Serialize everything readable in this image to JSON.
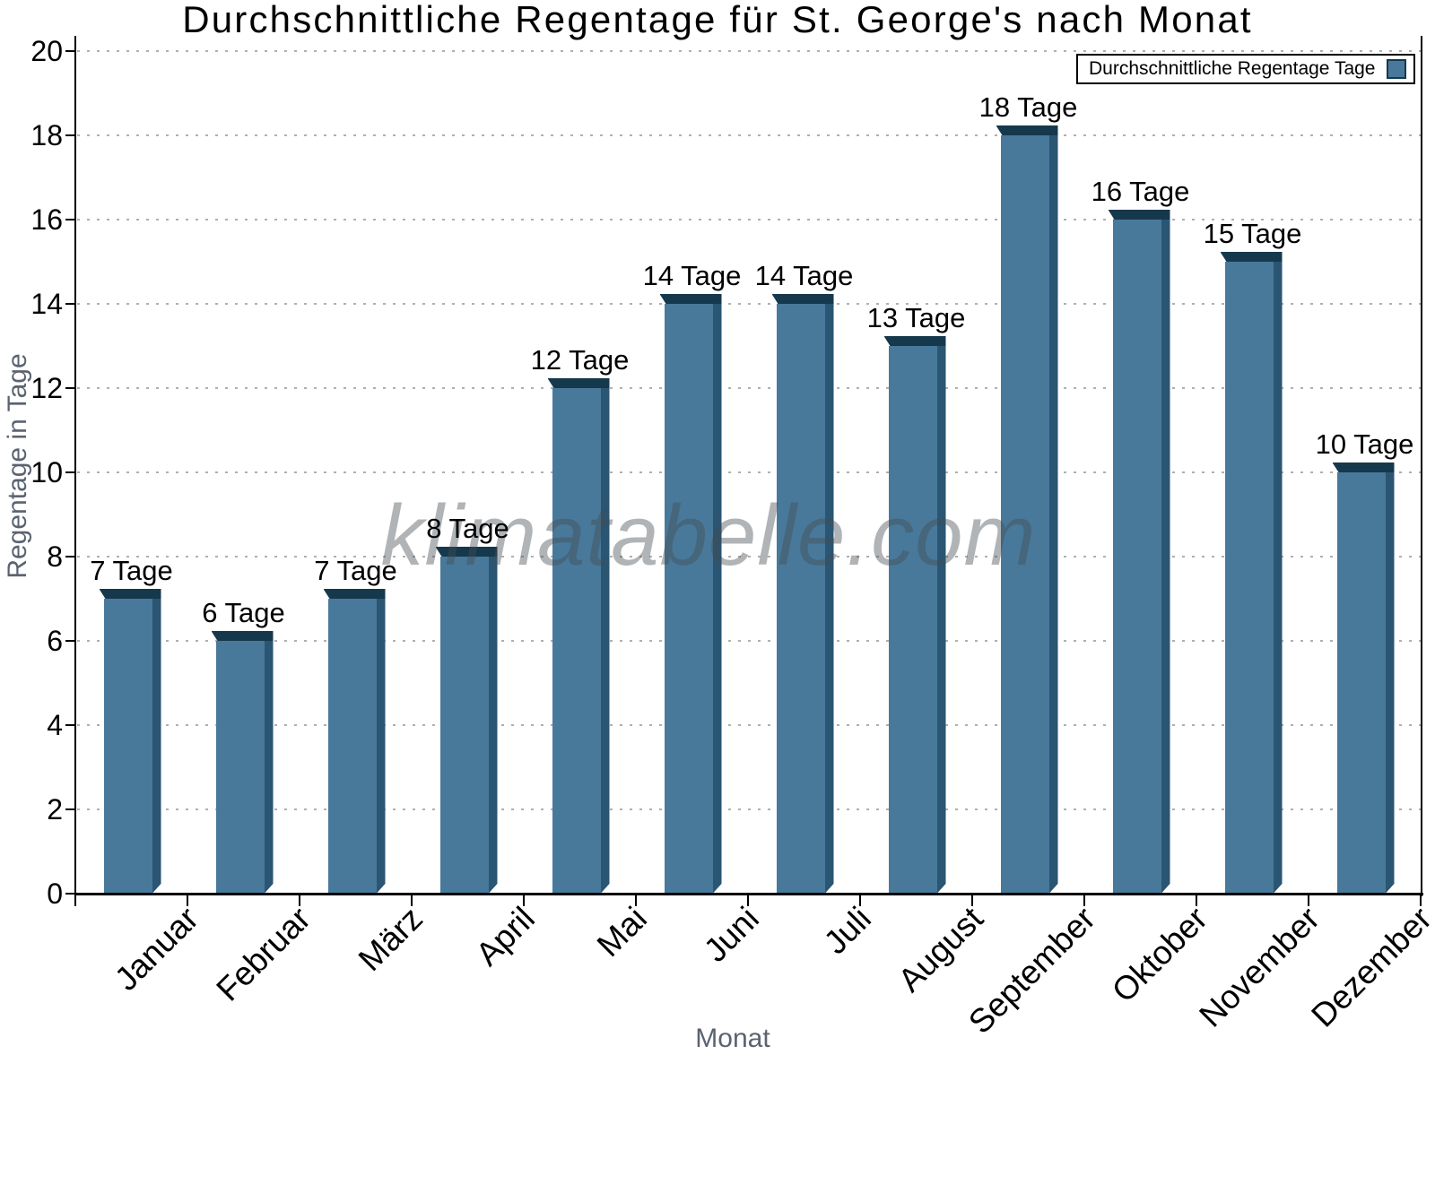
{
  "title": "Durchschnittliche Regentage für St. George's nach Monat",
  "watermark": "klimatabelle.com",
  "legend": {
    "label": "Durchschnittliche Regentage Tage"
  },
  "y_axis": {
    "title": "Regentage in Tage"
  },
  "x_axis": {
    "title": "Monat"
  },
  "chart_data": {
    "type": "bar",
    "title": "Durchschnittliche Regentage für St. George's nach Monat",
    "categories": [
      "Januar",
      "Februar",
      "März",
      "April",
      "Mai",
      "Juni",
      "Juli",
      "August",
      "September",
      "Oktober",
      "November",
      "Dezember"
    ],
    "values": [
      7,
      6,
      7,
      8,
      12,
      14,
      14,
      13,
      18,
      16,
      15,
      10
    ],
    "bar_labels": [
      "7 Tage",
      "6 Tage",
      "7 Tage",
      "8 Tage",
      "12 Tage",
      "14 Tage",
      "14 Tage",
      "13 Tage",
      "18 Tage",
      "16 Tage",
      "15 Tage",
      "10 Tage"
    ],
    "xlabel": "Monat",
    "ylabel": "Regentage in Tage",
    "ylim": [
      0,
      20
    ],
    "ytick_step": 2,
    "grid": "horizontal-dotted",
    "legend": [
      "Durchschnittliche Regentage Tage"
    ],
    "legend_position": "top-right",
    "colors": {
      "bar_face": "#48799B",
      "bar_side": "#2A5573",
      "bar_top": "#16384D",
      "grid": "#AFAFAF",
      "axis": "#000000",
      "axis_title_text": "#5A6370",
      "watermark": "#9A9EA2"
    }
  }
}
